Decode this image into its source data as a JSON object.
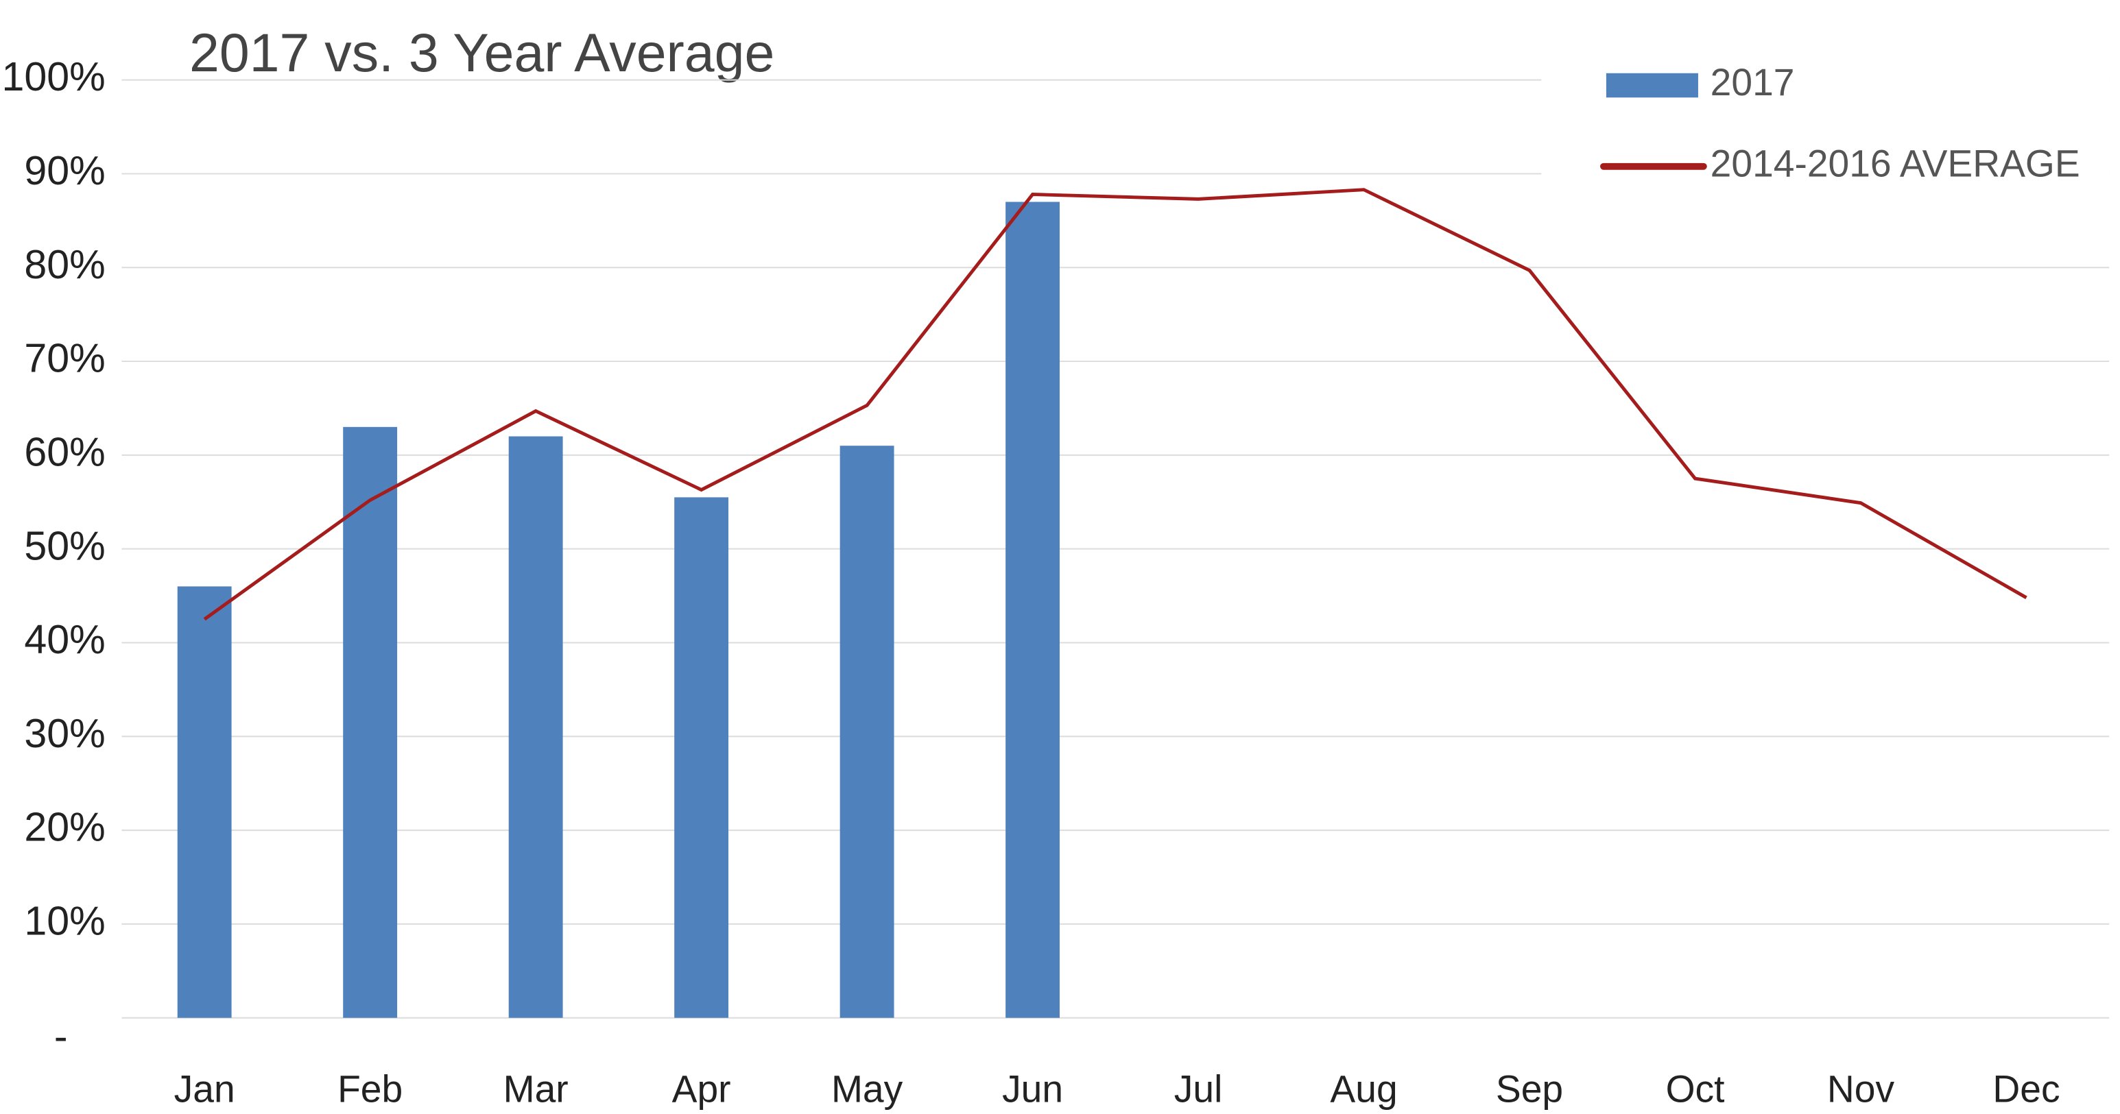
{
  "chart_data": {
    "type": "bar_line",
    "title": "2017 vs. 3 Year Average",
    "categories": [
      "Jan",
      "Feb",
      "Mar",
      "Apr",
      "May",
      "Jun",
      "Jul",
      "Aug",
      "Sep",
      "Oct",
      "Nov",
      "Dec"
    ],
    "series": [
      {
        "name": "2017",
        "type": "bar",
        "color": "#4f81bd",
        "values": [
          46,
          63,
          62,
          55.5,
          61,
          87,
          null,
          null,
          null,
          null,
          null,
          null
        ]
      },
      {
        "name": "2014-2016 AVERAGE",
        "type": "line",
        "color": "#a51c1c",
        "values": [
          42.5,
          55.2,
          64.7,
          56.3,
          65.3,
          87.8,
          87.3,
          88.3,
          79.7,
          57.5,
          54.9,
          44.8
        ]
      }
    ],
    "ylim": [
      0,
      100
    ],
    "yticks": [
      {
        "value": 0,
        "label": "-"
      },
      {
        "value": 10,
        "label": "10%"
      },
      {
        "value": 20,
        "label": "20%"
      },
      {
        "value": 30,
        "label": "30%"
      },
      {
        "value": 40,
        "label": "40%"
      },
      {
        "value": 50,
        "label": "50%"
      },
      {
        "value": 60,
        "label": "60%"
      },
      {
        "value": 70,
        "label": "70%"
      },
      {
        "value": 80,
        "label": "80%"
      },
      {
        "value": 90,
        "label": "90%"
      },
      {
        "value": 100,
        "label": "100%"
      }
    ],
    "grid": true,
    "legend": "top-right"
  }
}
